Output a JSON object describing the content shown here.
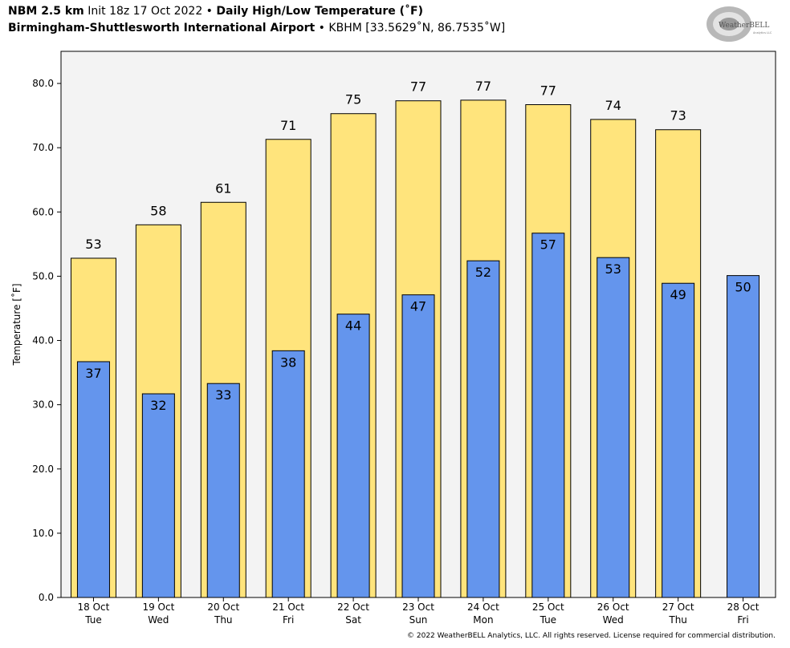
{
  "header": {
    "model": "NBM 2.5 km",
    "init": "Init 18z 17 Oct 2022",
    "product": "Daily High/Low Temperature (˚F)",
    "location": "Birmingham-Shuttlesworth International Airport",
    "station": "KBHM [33.5629˚N, 86.7535˚W]",
    "bullet": " • "
  },
  "logo": {
    "text_main": "WeatherBELL",
    "text_sub": "Analytics LLC"
  },
  "footer": {
    "copyright": "© 2022 WeatherBELL Analytics, LLC. All rights reserved. License required for commercial distribution."
  },
  "colors": {
    "high": "#FFE47C",
    "low": "#6495ED",
    "plot_bg": "#F3F3F3"
  },
  "chart_data": {
    "type": "bar",
    "ylabel": "Temperature [˚F]",
    "ylim": [
      0,
      85
    ],
    "yticks": [
      "0.0",
      "10.0",
      "20.0",
      "30.0",
      "40.0",
      "50.0",
      "60.0",
      "70.0",
      "80.0"
    ],
    "categories": [
      {
        "date": "18 Oct",
        "day": "Tue"
      },
      {
        "date": "19 Oct",
        "day": "Wed"
      },
      {
        "date": "20 Oct",
        "day": "Thu"
      },
      {
        "date": "21 Oct",
        "day": "Fri"
      },
      {
        "date": "22 Oct",
        "day": "Sat"
      },
      {
        "date": "23 Oct",
        "day": "Sun"
      },
      {
        "date": "24 Oct",
        "day": "Mon"
      },
      {
        "date": "25 Oct",
        "day": "Tue"
      },
      {
        "date": "26 Oct",
        "day": "Wed"
      },
      {
        "date": "27 Oct",
        "day": "Thu"
      },
      {
        "date": "28 Oct",
        "day": "Fri"
      }
    ],
    "series": [
      {
        "name": "High",
        "values": [
          52.8,
          58.0,
          61.5,
          71.3,
          75.3,
          77.3,
          77.4,
          76.7,
          74.4,
          72.8,
          null
        ],
        "labels": [
          "53",
          "58",
          "61",
          "71",
          "75",
          "77",
          "77",
          "77",
          "74",
          "73",
          ""
        ]
      },
      {
        "name": "Low",
        "values": [
          36.7,
          31.7,
          33.3,
          38.4,
          44.1,
          47.1,
          52.4,
          56.7,
          52.9,
          48.9,
          50.1
        ],
        "labels": [
          "37",
          "32",
          "33",
          "38",
          "44",
          "47",
          "52",
          "57",
          "53",
          "49",
          "50"
        ]
      }
    ]
  }
}
